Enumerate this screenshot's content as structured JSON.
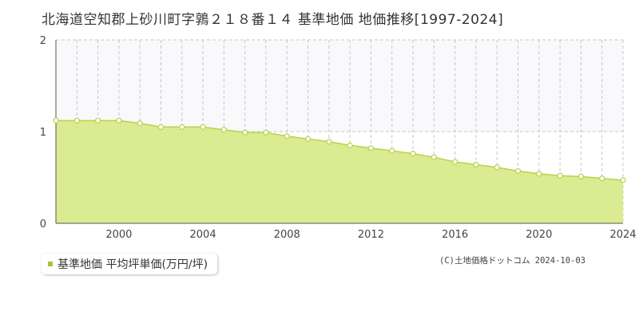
{
  "chart_data": {
    "type": "area",
    "title": "北海道空知郡上砂川町字鶉２１８番１４ 基準地価 地価推移[1997-2024]",
    "x": [
      1997,
      1998,
      1999,
      2000,
      2001,
      2002,
      2003,
      2004,
      2005,
      2006,
      2007,
      2008,
      2009,
      2010,
      2011,
      2012,
      2013,
      2014,
      2015,
      2016,
      2017,
      2018,
      2019,
      2020,
      2021,
      2022,
      2023,
      2024
    ],
    "series": [
      {
        "name": "基準地価 平均坪単価(万円/坪)",
        "values": [
          1.12,
          1.12,
          1.12,
          1.12,
          1.09,
          1.05,
          1.05,
          1.05,
          1.02,
          0.99,
          0.99,
          0.95,
          0.92,
          0.89,
          0.85,
          0.82,
          0.79,
          0.76,
          0.72,
          0.67,
          0.64,
          0.61,
          0.57,
          0.54,
          0.52,
          0.51,
          0.49,
          0.47
        ]
      }
    ],
    "xticks": [
      "2000",
      "2004",
      "2008",
      "2012",
      "2016",
      "2020",
      "2024"
    ],
    "yticks": [
      "0",
      "1",
      "2"
    ],
    "xlim": [
      1997,
      2024
    ],
    "ylim": [
      0,
      2
    ],
    "xlabel": "",
    "ylabel": "",
    "grid": true,
    "legend": "bottom-left",
    "colors": {
      "fill": "#dbeb91",
      "line": "#b7d34a",
      "marker_fill": "#ffffff",
      "marker_stroke": "#b7d34a",
      "legend_marker": "#a4c639",
      "upper_band": "#f9f8fa",
      "grid": "#c8c8c8",
      "axis": "#555555"
    }
  },
  "legend": {
    "label": "基準地価 平均坪単価(万円/坪)"
  },
  "copyright": "(C)土地価格ドットコム 2024-10-03"
}
